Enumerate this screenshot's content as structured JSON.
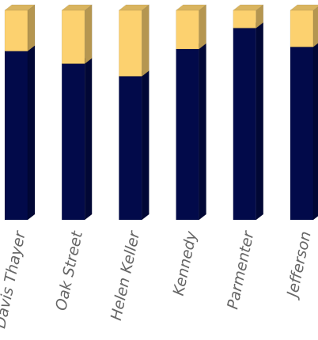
{
  "chart_data": {
    "type": "bar",
    "stacked": true,
    "normalized": true,
    "style": "3d",
    "categories": [
      "Davis Thayer",
      "Oak Street",
      "Helen Keller",
      "Kennedy",
      "Parmenter",
      "Jefferson"
    ],
    "series": [
      {
        "values": [
          80.5,
          74.5,
          68.5,
          81.5,
          91.5,
          82.5
        ],
        "color": "#020a4a"
      },
      {
        "values": [
          19.5,
          25.5,
          31.5,
          18.5,
          8.5,
          17.5
        ],
        "color": "#fcd16f"
      }
    ],
    "ylim": [
      0,
      100
    ],
    "grid": false,
    "legend": "none",
    "title": "",
    "xlabel": "",
    "ylabel": ""
  }
}
